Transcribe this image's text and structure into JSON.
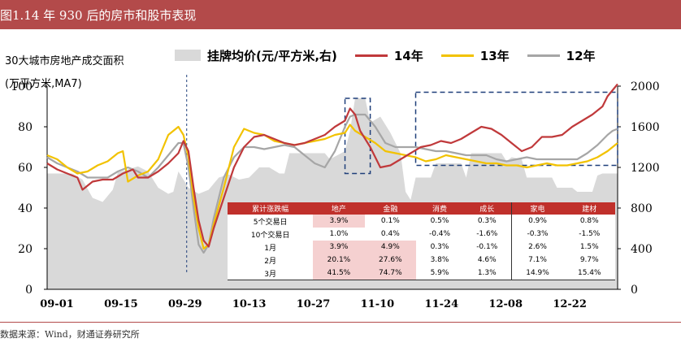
{
  "title": "图1.14 年 930 后的房市和股市表现",
  "source": "数据来源：Wind，财通证券研究所",
  "y_left_label": [
    "30大城市房地产成交面积",
    "(万平方米,MA7)"
  ],
  "legend": [
    {
      "label": "挂牌均价(元/平方米,右)",
      "color": "#d9d9d9",
      "kind": "area"
    },
    {
      "label": "14年",
      "color": "#c0393b",
      "kind": "line"
    },
    {
      "label": "13年",
      "color": "#f2c200",
      "kind": "line"
    },
    {
      "label": "12年",
      "color": "#a6a6a6",
      "kind": "line"
    }
  ],
  "colors": {
    "area": "#d9d9d9",
    "y14": "#c0393b",
    "y13": "#f2c200",
    "y12": "#a6a6a6",
    "box": "#1f3f7a",
    "title_bg": "#b34a4a",
    "table_header": "#c0302b",
    "table_highlight": "#f5d0d0"
  },
  "table": {
    "headers": [
      "累计涨跌幅",
      "地产",
      "金融",
      "消费",
      "成长",
      "家电",
      "建材"
    ],
    "rows": [
      {
        "label": "5个交易日",
        "values": [
          "3.9%",
          "0.1%",
          "0.5%",
          "0.3%",
          "0.9%",
          "0.8%"
        ]
      },
      {
        "label": "10个交易日",
        "values": [
          "1.0%",
          "0.4%",
          "-0.4%",
          "-1.6%",
          "-0.3%",
          "-1.5%"
        ]
      },
      {
        "label": "1月",
        "values": [
          "3.9%",
          "4.9%",
          "0.3%",
          "-0.1%",
          "2.6%",
          "1.5%"
        ]
      },
      {
        "label": "2月",
        "values": [
          "20.1%",
          "27.6%",
          "3.8%",
          "4.6%",
          "7.1%",
          "9.7%"
        ]
      },
      {
        "label": "3月",
        "values": [
          "41.5%",
          "74.7%",
          "5.9%",
          "1.3%",
          "14.9%",
          "15.4%"
        ]
      }
    ]
  },
  "chart_data": {
    "type": "line",
    "x_categories": [
      "09-01",
      "09-15",
      "09-29",
      "10-13",
      "10-27",
      "11-10",
      "11-24",
      "12-08",
      "12-22"
    ],
    "y_left": {
      "range": [
        0,
        100
      ],
      "ticks": [
        0,
        20,
        40,
        60,
        80,
        100
      ]
    },
    "y_right": {
      "range": [
        0,
        2000
      ],
      "ticks": [
        0,
        400,
        800,
        1200,
        1600,
        2000
      ]
    },
    "x_range": [
      0,
      113
    ],
    "series": [
      {
        "name": "挂牌均价(元/平方米,右)",
        "axis": "right",
        "kind": "area",
        "points": [
          [
            0,
            1140
          ],
          [
            5,
            1140
          ],
          [
            7,
            1080
          ],
          [
            9,
            900
          ],
          [
            11,
            860
          ],
          [
            13,
            980
          ],
          [
            14,
            1150
          ],
          [
            16,
            1180
          ],
          [
            18,
            1210
          ],
          [
            20,
            1160
          ],
          [
            22,
            1000
          ],
          [
            24,
            940
          ],
          [
            25,
            960
          ],
          [
            26,
            1160
          ],
          [
            28,
            1000
          ],
          [
            30,
            940
          ],
          [
            32,
            980
          ],
          [
            34,
            1100
          ],
          [
            36,
            1130
          ],
          [
            38,
            1080
          ],
          [
            40,
            1100
          ],
          [
            42,
            1200
          ],
          [
            44,
            1200
          ],
          [
            46,
            1140
          ],
          [
            47,
            1140
          ],
          [
            48,
            1340
          ],
          [
            55,
            1340
          ],
          [
            56,
            1280
          ],
          [
            59,
            1360
          ],
          [
            60,
            1560
          ],
          [
            61,
            1880
          ],
          [
            63,
            1880
          ],
          [
            64,
            1640
          ],
          [
            66,
            1700
          ],
          [
            68,
            1540
          ],
          [
            70,
            1340
          ],
          [
            71,
            960
          ],
          [
            72,
            880
          ],
          [
            73,
            1100
          ],
          [
            76,
            1100
          ],
          [
            77,
            1240
          ],
          [
            82,
            1240
          ],
          [
            83,
            1100
          ],
          [
            84,
            1340
          ],
          [
            90,
            1340
          ],
          [
            91,
            1260
          ],
          [
            92,
            1300
          ],
          [
            94,
            1280
          ],
          [
            95,
            1100
          ],
          [
            100,
            1100
          ],
          [
            101,
            1000
          ],
          [
            104,
            1000
          ],
          [
            105,
            960
          ],
          [
            108,
            960
          ],
          [
            109,
            1120
          ],
          [
            110,
            1140
          ],
          [
            111,
            1140
          ],
          [
            113,
            1140
          ]
        ]
      },
      {
        "name": "14年",
        "axis": "left",
        "points": [
          [
            0,
            62
          ],
          [
            2,
            59
          ],
          [
            4,
            57
          ],
          [
            6,
            55
          ],
          [
            7,
            49
          ],
          [
            9,
            53
          ],
          [
            11,
            54
          ],
          [
            13,
            54
          ],
          [
            15,
            57
          ],
          [
            17,
            59
          ],
          [
            18,
            55
          ],
          [
            20,
            55
          ],
          [
            22,
            58
          ],
          [
            24,
            62
          ],
          [
            26,
            67
          ],
          [
            27,
            73
          ],
          [
            28,
            68
          ],
          [
            29,
            50
          ],
          [
            30,
            34
          ],
          [
            31,
            24
          ],
          [
            32,
            21
          ],
          [
            33,
            30
          ],
          [
            35,
            45
          ],
          [
            37,
            60
          ],
          [
            39,
            70
          ],
          [
            41,
            75
          ],
          [
            43,
            76
          ],
          [
            45,
            74
          ],
          [
            47,
            72
          ],
          [
            49,
            71
          ],
          [
            51,
            72
          ],
          [
            53,
            74
          ],
          [
            55,
            76
          ],
          [
            57,
            80
          ],
          [
            59,
            83
          ],
          [
            60,
            89
          ],
          [
            61,
            86
          ],
          [
            62,
            78
          ],
          [
            64,
            70
          ],
          [
            66,
            60
          ],
          [
            68,
            61
          ],
          [
            70,
            64
          ],
          [
            72,
            67
          ],
          [
            74,
            70
          ],
          [
            76,
            71
          ],
          [
            78,
            73
          ],
          [
            80,
            72
          ],
          [
            82,
            74
          ],
          [
            84,
            77
          ],
          [
            86,
            80
          ],
          [
            88,
            79
          ],
          [
            90,
            76
          ],
          [
            92,
            72
          ],
          [
            94,
            68
          ],
          [
            96,
            70
          ],
          [
            98,
            75
          ],
          [
            100,
            75
          ],
          [
            102,
            76
          ],
          [
            104,
            80
          ],
          [
            106,
            83
          ],
          [
            108,
            86
          ],
          [
            110,
            90
          ],
          [
            111,
            95
          ],
          [
            112,
            98
          ],
          [
            113,
            101
          ]
        ]
      },
      {
        "name": "13年",
        "axis": "left",
        "points": [
          [
            0,
            66
          ],
          [
            2,
            64
          ],
          [
            4,
            60
          ],
          [
            6,
            57
          ],
          [
            8,
            58
          ],
          [
            10,
            61
          ],
          [
            12,
            63
          ],
          [
            14,
            67
          ],
          [
            15,
            68
          ],
          [
            16,
            53
          ],
          [
            18,
            56
          ],
          [
            20,
            58
          ],
          [
            22,
            64
          ],
          [
            24,
            76
          ],
          [
            26,
            80
          ],
          [
            27,
            76
          ],
          [
            28,
            65
          ],
          [
            29,
            45
          ],
          [
            30,
            30
          ],
          [
            31,
            20
          ],
          [
            32,
            22
          ],
          [
            33,
            32
          ],
          [
            35,
            50
          ],
          [
            37,
            70
          ],
          [
            39,
            79
          ],
          [
            41,
            77
          ],
          [
            43,
            76
          ],
          [
            45,
            73
          ],
          [
            47,
            72
          ],
          [
            49,
            71
          ],
          [
            51,
            72
          ],
          [
            53,
            73
          ],
          [
            55,
            74
          ],
          [
            57,
            76
          ],
          [
            59,
            77
          ],
          [
            60,
            81
          ],
          [
            61,
            78
          ],
          [
            63,
            75
          ],
          [
            65,
            72
          ],
          [
            67,
            68
          ],
          [
            69,
            67
          ],
          [
            71,
            66
          ],
          [
            73,
            65
          ],
          [
            75,
            63
          ],
          [
            77,
            64
          ],
          [
            79,
            66
          ],
          [
            81,
            65
          ],
          [
            83,
            64
          ],
          [
            85,
            63
          ],
          [
            87,
            62
          ],
          [
            89,
            62
          ],
          [
            91,
            61
          ],
          [
            93,
            61
          ],
          [
            95,
            60
          ],
          [
            97,
            61
          ],
          [
            99,
            62
          ],
          [
            101,
            61
          ],
          [
            103,
            61
          ],
          [
            105,
            62
          ],
          [
            107,
            63
          ],
          [
            109,
            65
          ],
          [
            111,
            68
          ],
          [
            113,
            72
          ]
        ]
      },
      {
        "name": "12年",
        "axis": "left",
        "points": [
          [
            0,
            65
          ],
          [
            2,
            62
          ],
          [
            4,
            60
          ],
          [
            6,
            58
          ],
          [
            8,
            55
          ],
          [
            10,
            55
          ],
          [
            12,
            55
          ],
          [
            14,
            58
          ],
          [
            16,
            60
          ],
          [
            18,
            58
          ],
          [
            20,
            55
          ],
          [
            22,
            60
          ],
          [
            24,
            66
          ],
          [
            26,
            72
          ],
          [
            27,
            72
          ],
          [
            28,
            60
          ],
          [
            29,
            40
          ],
          [
            30,
            22
          ],
          [
            31,
            18
          ],
          [
            32,
            22
          ],
          [
            33,
            35
          ],
          [
            35,
            55
          ],
          [
            37,
            65
          ],
          [
            39,
            70
          ],
          [
            41,
            70
          ],
          [
            43,
            69
          ],
          [
            45,
            70
          ],
          [
            47,
            71
          ],
          [
            49,
            70
          ],
          [
            51,
            66
          ],
          [
            53,
            62
          ],
          [
            55,
            60
          ],
          [
            57,
            68
          ],
          [
            59,
            80
          ],
          [
            60,
            85
          ],
          [
            61,
            86
          ],
          [
            63,
            86
          ],
          [
            65,
            80
          ],
          [
            67,
            72
          ],
          [
            69,
            70
          ],
          [
            71,
            70
          ],
          [
            73,
            70
          ],
          [
            75,
            69
          ],
          [
            77,
            68
          ],
          [
            79,
            68
          ],
          [
            81,
            67
          ],
          [
            83,
            66
          ],
          [
            85,
            66
          ],
          [
            87,
            66
          ],
          [
            89,
            64
          ],
          [
            91,
            63
          ],
          [
            93,
            64
          ],
          [
            95,
            65
          ],
          [
            97,
            64
          ],
          [
            99,
            64
          ],
          [
            101,
            64
          ],
          [
            103,
            64
          ],
          [
            105,
            64
          ],
          [
            107,
            67
          ],
          [
            109,
            71
          ],
          [
            111,
            76
          ],
          [
            112,
            78
          ],
          [
            113,
            79
          ]
        ]
      }
    ],
    "annotations": [
      {
        "type": "vline-dashed",
        "x": 27
      },
      {
        "type": "dashed-box",
        "x": [
          59,
          64
        ],
        "y": [
          57,
          94
        ]
      },
      {
        "type": "dashed-box",
        "x": [
          73,
          113
        ],
        "y": [
          61,
          97
        ]
      }
    ]
  }
}
